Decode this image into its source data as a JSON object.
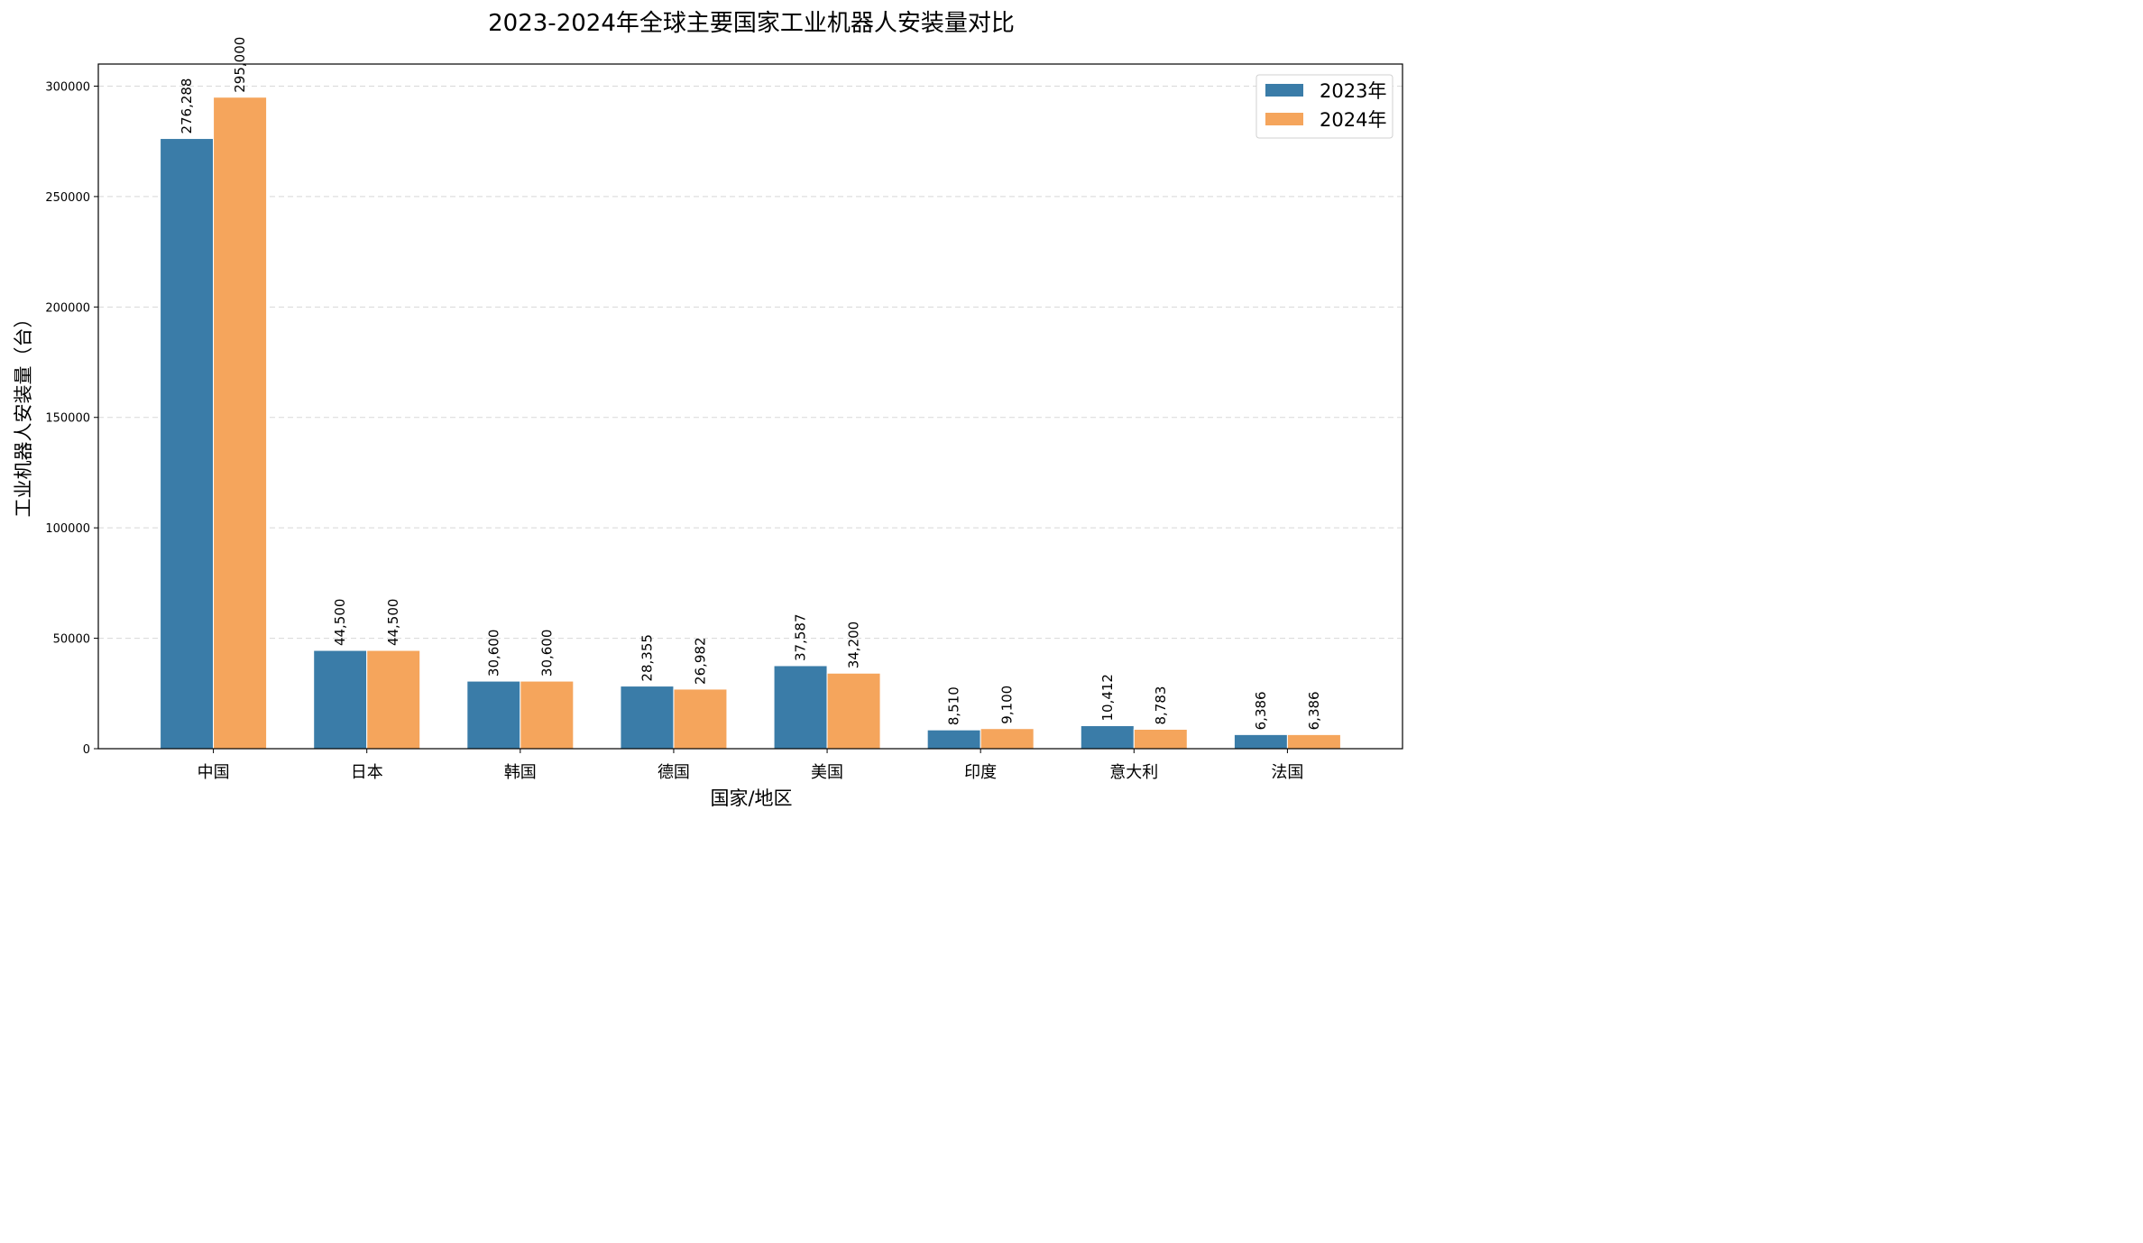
{
  "chart_data": {
    "type": "bar",
    "title": "2023-2024年全球主要国家工业机器人安装量对比",
    "xlabel": "国家/地区",
    "ylabel": "工业机器人安装量（台）",
    "categories": [
      "中国",
      "日本",
      "韩国",
      "德国",
      "美国",
      "印度",
      "意大利",
      "法国"
    ],
    "series": [
      {
        "name": "2023年",
        "color": "#3a7ca8",
        "values": [
          276288,
          44500,
          30600,
          28355,
          37587,
          8510,
          10412,
          6386
        ],
        "labels": [
          "276,288",
          "44,500",
          "30,600",
          "28,355",
          "37,587",
          "8,510",
          "10,412",
          "6,386"
        ]
      },
      {
        "name": "2024年",
        "color": "#f5a55c",
        "values": [
          295000,
          44500,
          30600,
          26982,
          34200,
          9100,
          8783,
          6386
        ],
        "labels": [
          "295,000",
          "44,500",
          "30,600",
          "26,982",
          "34,200",
          "9,100",
          "8,783",
          "6,386"
        ]
      }
    ],
    "ylim": [
      0,
      310000
    ],
    "yticks": [
      0,
      50000,
      100000,
      150000,
      200000,
      250000,
      300000
    ],
    "ytick_labels": [
      "0",
      "50000",
      "100000",
      "150000",
      "200000",
      "250000",
      "300000"
    ],
    "grid": "y-dashed",
    "legend_position": "top-right"
  }
}
